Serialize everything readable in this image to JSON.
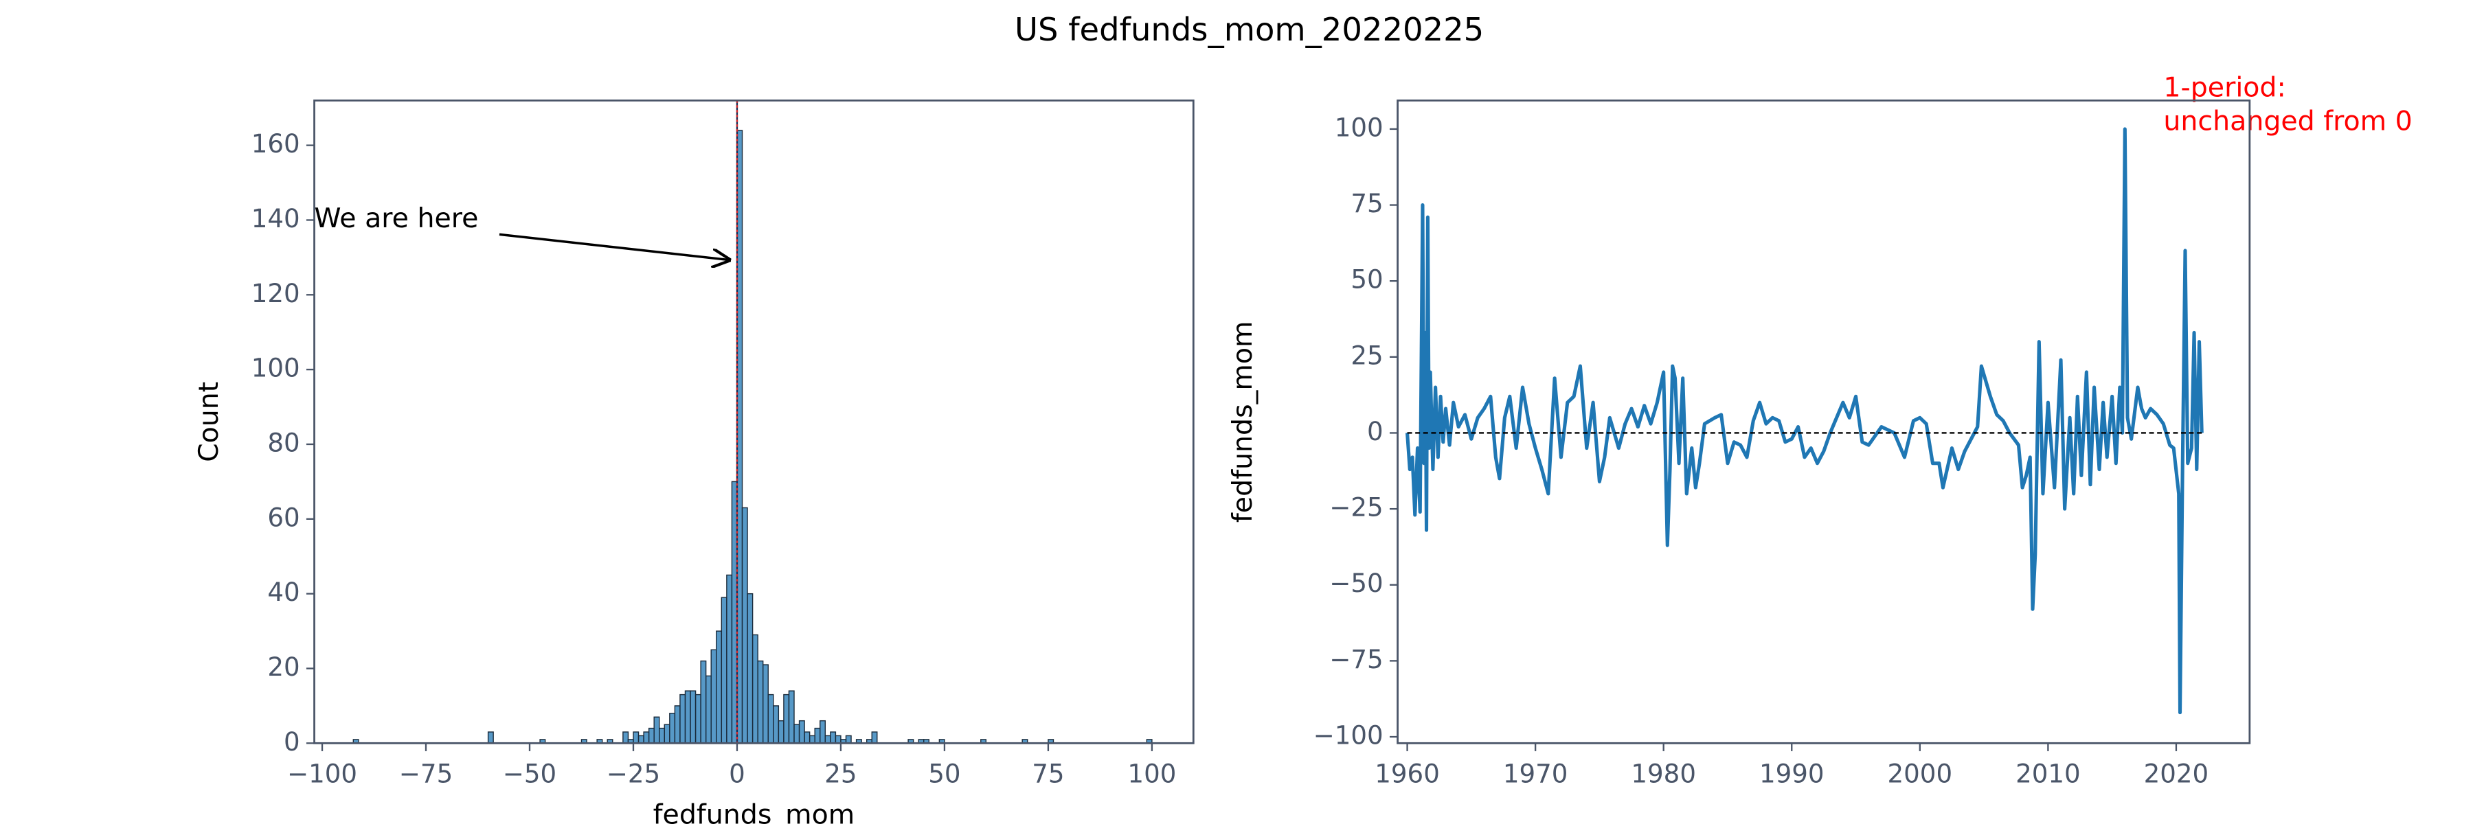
{
  "title": "US fedfunds_mom_20220225",
  "chart_data": [
    {
      "type": "histogram",
      "xlabel": "fedfunds_mom",
      "ylabel": "Count",
      "annotation": "We are here",
      "color": "#1f77b4",
      "vline": 0,
      "vline_color": "#d62728",
      "xlim": [
        -101.9,
        110
      ],
      "ylim": [
        0,
        172
      ],
      "xticks": [
        {
          "value": -100,
          "label": "−100"
        },
        {
          "value": -75,
          "label": "−75"
        },
        {
          "value": -50,
          "label": "−50"
        },
        {
          "value": -25,
          "label": "−25"
        },
        0,
        25,
        50,
        75,
        100
      ],
      "yticks": [
        0,
        20,
        40,
        60,
        80,
        100,
        120,
        140,
        160
      ],
      "bins": [
        -92.5,
        -91.25,
        -90,
        -88.75,
        -87.5,
        -86.25,
        -85,
        -83.75,
        -82.5,
        -81.25,
        -80,
        -78.75,
        -77.5,
        -76.25,
        -75,
        -73.75,
        -72.5,
        -71.25,
        -70,
        -68.75,
        -67.5,
        -66.25,
        -65,
        -63.75,
        -62.5,
        -61.25,
        -60,
        -58.75,
        -57.5,
        -56.25,
        -55,
        -53.75,
        -52.5,
        -51.25,
        -50,
        -48.75,
        -47.5,
        -46.25,
        -45,
        -43.75,
        -42.5,
        -41.25,
        -40,
        -38.75,
        -37.5,
        -36.25,
        -35,
        -33.75,
        -32.5,
        -31.25,
        -30,
        -28.75,
        -27.5,
        -26.25,
        -25,
        -23.75,
        -22.5,
        -21.25,
        -20,
        -18.75,
        -17.5,
        -16.25,
        -15,
        -13.75,
        -12.5,
        -11.25,
        -10,
        -8.75,
        -7.5,
        -6.25,
        -5,
        -3.75,
        -2.5,
        -1.25,
        0,
        1.25,
        2.5,
        3.75,
        5,
        6.25,
        7.5,
        8.75,
        10,
        11.25,
        12.5,
        13.75,
        15,
        16.25,
        17.5,
        18.75,
        20,
        21.25,
        22.5,
        23.75,
        25,
        26.25,
        27.5,
        28.75,
        30,
        31.25,
        32.5,
        33.75,
        35,
        36.25,
        37.5,
        38.75,
        40,
        41.25,
        42.5,
        43.75,
        45,
        46.25,
        47.5,
        48.75,
        50,
        51.25,
        52.5,
        53.75,
        55,
        56.25,
        57.5,
        58.75,
        60,
        61.25,
        62.5,
        63.75,
        65,
        66.25,
        67.5,
        68.75,
        70,
        71.25,
        72.5,
        73.75,
        75,
        76.25,
        77.5,
        78.75,
        80,
        81.25,
        82.5,
        83.75,
        85,
        86.25,
        87.5,
        88.75,
        90,
        91.25,
        92.5,
        93.75,
        95,
        96.25,
        97.5,
        98.75,
        100
      ],
      "values": [
        1,
        0,
        0,
        0,
        0,
        0,
        0,
        0,
        0,
        0,
        0,
        0,
        0,
        0,
        0,
        0,
        0,
        0,
        0,
        0,
        0,
        0,
        0,
        0,
        0,
        0,
        3,
        0,
        0,
        0,
        0,
        0,
        0,
        0,
        0,
        0,
        1,
        0,
        0,
        0,
        0,
        0,
        0,
        0,
        1,
        0,
        0,
        1,
        0,
        1,
        0,
        0,
        3,
        1,
        3,
        2,
        3,
        4,
        7,
        4,
        5,
        8,
        10,
        13,
        14,
        14,
        13,
        22,
        18,
        25,
        30,
        39,
        45,
        70,
        164,
        63,
        40,
        29,
        22,
        21,
        13,
        10,
        6,
        13,
        14,
        5,
        6,
        3,
        2,
        4,
        6,
        2,
        3,
        2,
        1,
        2,
        0,
        1,
        0,
        1,
        3,
        0,
        0,
        0,
        0,
        0,
        0,
        1,
        0,
        1,
        1,
        0,
        0,
        1,
        0,
        0,
        0,
        0,
        0,
        0,
        0,
        1,
        0,
        0,
        0,
        0,
        0,
        0,
        0,
        1,
        0,
        0,
        0,
        0,
        1,
        0,
        0,
        0,
        0,
        0,
        0,
        0,
        0,
        0,
        0,
        0,
        0,
        0,
        0,
        0,
        0,
        0,
        0,
        1
      ]
    },
    {
      "type": "line",
      "ylabel": "fedfunds_mom",
      "annotation": [
        "1-period:",
        "unchanged from 0"
      ],
      "annotation_color": "#ff0000",
      "color": "#1f77b4",
      "hline": 0,
      "xlim": [
        1959.25,
        2025.73
      ],
      "ylim": [
        -102.1,
        109.4
      ],
      "xticks": [
        1960,
        1970,
        1980,
        1990,
        2000,
        2010,
        2020
      ],
      "yticks": [
        {
          "value": -100,
          "label": "−100"
        },
        {
          "value": -75,
          "label": "−75"
        },
        {
          "value": -50,
          "label": "−50"
        },
        {
          "value": -25,
          "label": "−25"
        },
        0,
        25,
        50,
        75,
        100
      ],
      "x": [
        1960.0,
        1960.2,
        1960.4,
        1960.6,
        1960.8,
        1961.0,
        1961.2,
        1961.3,
        1961.4,
        1961.5,
        1961.6,
        1961.7,
        1961.8,
        1962.0,
        1962.2,
        1962.4,
        1962.6,
        1962.8,
        1963.0,
        1963.3,
        1963.6,
        1964.0,
        1964.5,
        1965.0,
        1965.5,
        1966.0,
        1966.5,
        1966.9,
        1967.2,
        1967.6,
        1968.0,
        1968.5,
        1969.0,
        1969.5,
        1970.0,
        1970.5,
        1971.0,
        1971.5,
        1972.0,
        1972.5,
        1973.0,
        1973.5,
        1974.0,
        1974.5,
        1975.0,
        1975.4,
        1975.8,
        1976.5,
        1977.0,
        1977.5,
        1978.0,
        1978.5,
        1979.0,
        1979.5,
        1980.0,
        1980.3,
        1980.5,
        1980.7,
        1980.9,
        1981.2,
        1981.5,
        1981.8,
        1982.2,
        1982.5,
        1982.8,
        1983.2,
        1984.0,
        1984.5,
        1985.0,
        1985.5,
        1986.0,
        1986.5,
        1987.0,
        1987.5,
        1988.0,
        1988.5,
        1989.0,
        1989.5,
        1990.0,
        1990.5,
        1991.0,
        1991.5,
        1992.0,
        1992.5,
        1993.0,
        1994.0,
        1994.5,
        1995.0,
        1995.5,
        1996.0,
        1997.0,
        1998.0,
        1998.8,
        1999.5,
        2000.0,
        2000.5,
        2001.0,
        2001.5,
        2001.8,
        2002.5,
        2003.0,
        2003.5,
        2004.5,
        2004.8,
        2005.5,
        2006.0,
        2006.5,
        2007.0,
        2007.7,
        2008.0,
        2008.3,
        2008.6,
        2008.8,
        2009.0,
        2009.3,
        2009.6,
        2010.0,
        2010.5,
        2011.0,
        2011.3,
        2011.7,
        2012.0,
        2012.3,
        2012.6,
        2013.0,
        2013.3,
        2013.6,
        2014.0,
        2014.3,
        2014.6,
        2015.0,
        2015.3,
        2015.6,
        2015.8,
        2016.0,
        2016.2,
        2016.5,
        2017.0,
        2017.3,
        2017.6,
        2018.0,
        2018.5,
        2019.0,
        2019.5,
        2019.8,
        2020.2,
        2020.3,
        2020.5,
        2020.7,
        2020.9,
        2021.2,
        2021.4,
        2021.6,
        2021.8,
        2022.0
      ],
      "values": [
        0,
        -12,
        -8,
        -27,
        -5,
        -26,
        75,
        -10,
        33,
        -32,
        71,
        -5,
        20,
        -12,
        15,
        -8,
        12,
        -3,
        8,
        -4,
        10,
        2,
        6,
        -2,
        5,
        8,
        12,
        -8,
        -15,
        5,
        12,
        -5,
        15,
        3,
        -5,
        -12,
        -20,
        18,
        -8,
        10,
        12,
        22,
        -5,
        10,
        -16,
        -8,
        5,
        -5,
        3,
        8,
        2,
        9,
        3,
        10,
        20,
        -37,
        -12,
        22,
        18,
        -10,
        18,
        -20,
        -5,
        -18,
        -10,
        3,
        5,
        6,
        -10,
        -3,
        -4,
        -8,
        4,
        10,
        3,
        5,
        4,
        -3,
        -2,
        2,
        -8,
        -5,
        -10,
        -6,
        0,
        10,
        5,
        12,
        -3,
        -4,
        2,
        0,
        -8,
        4,
        5,
        3,
        -10,
        -10,
        -18,
        -5,
        -12,
        -6,
        2,
        22,
        12,
        6,
        4,
        0,
        -4,
        -18,
        -14,
        -8,
        -58,
        -40,
        30,
        -20,
        10,
        -18,
        24,
        -25,
        5,
        -20,
        12,
        -14,
        20,
        -17,
        15,
        -12,
        10,
        -8,
        12,
        -10,
        15,
        0,
        100,
        5,
        -2,
        15,
        8,
        5,
        8,
        6,
        3,
        -4,
        -5,
        -20,
        -92,
        -10,
        60,
        -10,
        -5,
        33,
        -12,
        30,
        0
      ]
    }
  ]
}
